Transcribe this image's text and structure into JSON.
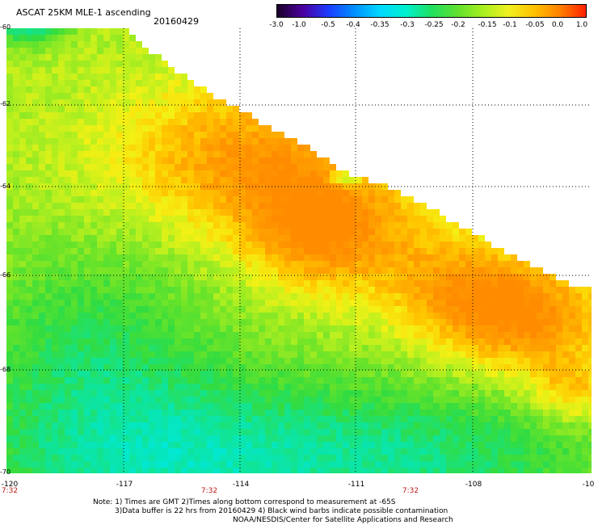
{
  "header": {
    "title": "ASCAT 25KM MLE-1 ascending",
    "date": "20160429"
  },
  "colorbar": {
    "labels": [
      "-3.0",
      "-1.0",
      "-0.5",
      "-0.4",
      "-0.35",
      "-0.3",
      "-0.25",
      "-0.2",
      "-0.15",
      "-0.1",
      "-0.05",
      "0.0",
      "1.0"
    ],
    "colors": [
      "#1a0026",
      "#4c00a0",
      "#1c3cff",
      "#0090ff",
      "#00d8ff",
      "#00f0d0",
      "#20e060",
      "#60e030",
      "#a8f020",
      "#f0f020",
      "#ffc000",
      "#ff8000",
      "#ff2000"
    ]
  },
  "map": {
    "lat_labels": [
      "-60",
      "-62",
      "-64",
      "-66",
      "-68",
      "-70"
    ],
    "lon_labels": [
      "-120",
      "-117",
      "-114",
      "-111",
      "-108",
      "-10"
    ],
    "time_labels": [
      "7:32",
      "7:32",
      "7:32"
    ]
  },
  "notes": {
    "line1": "Note: 1) Times are GMT 2)Times along bottom correspond to measurement at -65S",
    "line2": "3)Data buffer is 22 hrs from 20160429 4) Black wind barbs indicate possible contamination",
    "line3": "NOAA/NESDIS/Center for Satellite Applications and Research"
  }
}
